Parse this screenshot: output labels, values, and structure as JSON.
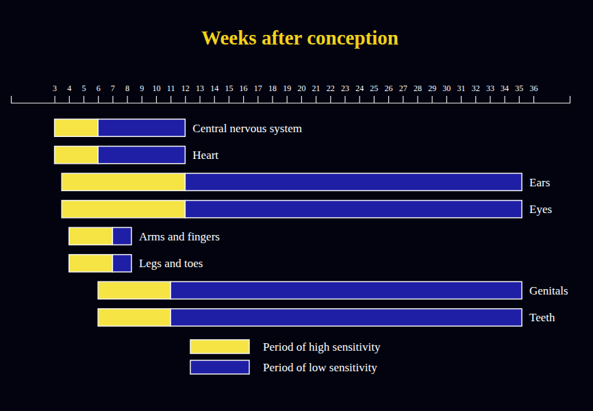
{
  "chart_data": {
    "type": "bar",
    "orientation": "horizontal",
    "title": "Weeks after conception",
    "categories": [
      "Central nervous system",
      "Heart",
      "Ears",
      "Eyes",
      "Arms and fingers",
      "Legs and toes",
      "Genitals",
      "Teeth"
    ],
    "series": [
      {
        "name": "Period of high sensitivity",
        "color": "#f5e444",
        "values": [
          [
            3,
            6
          ],
          [
            3,
            6
          ],
          [
            3.5,
            12
          ],
          [
            3.5,
            12
          ],
          [
            4,
            7
          ],
          [
            4,
            7
          ],
          [
            6,
            11
          ],
          [
            6,
            11
          ]
        ]
      },
      {
        "name": "Period of low sensitivity",
        "color": "#1f1fa6",
        "values": [
          [
            6,
            12
          ],
          [
            6,
            12
          ],
          [
            12,
            35.2
          ],
          [
            12,
            35.2
          ],
          [
            7,
            8.3
          ],
          [
            7,
            8.3
          ],
          [
            11,
            35.2
          ],
          [
            11,
            35.2
          ]
        ]
      }
    ],
    "xlim": [
      0,
      38.5
    ],
    "xticks": [
      3,
      4,
      5,
      6,
      7,
      8,
      9,
      10,
      11,
      12,
      13,
      14,
      15,
      16,
      17,
      18,
      19,
      20,
      21,
      22,
      23,
      24,
      25,
      26,
      27,
      28,
      29,
      30,
      31,
      32,
      33,
      34,
      35,
      36
    ],
    "legend": "bottom"
  }
}
